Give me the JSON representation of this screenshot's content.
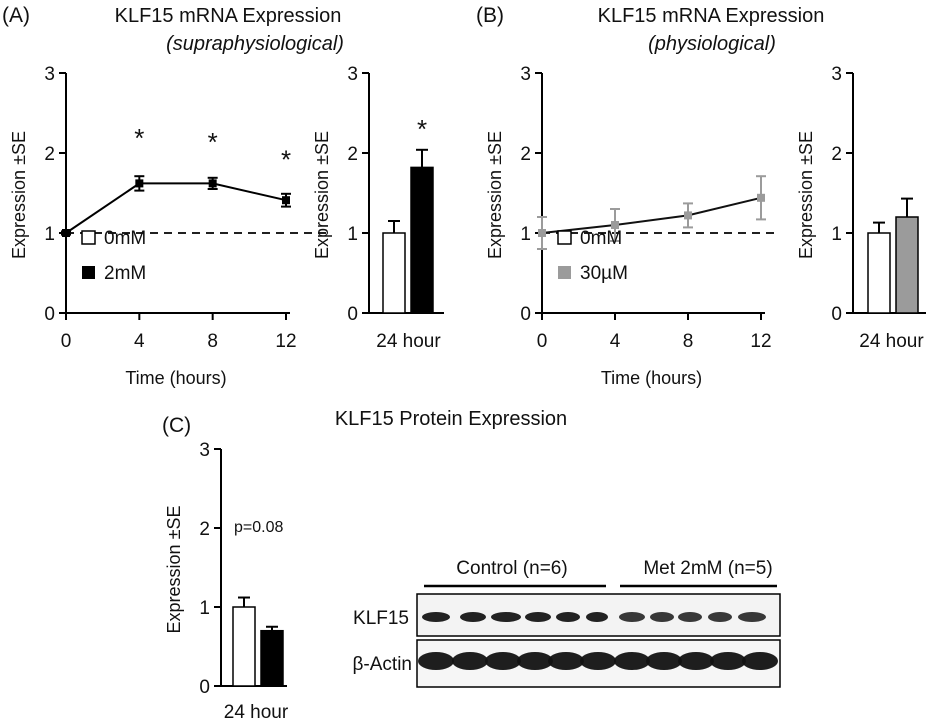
{
  "panels": {
    "A": {
      "letter": "(A)",
      "title": "KLF15 mRNA Expression",
      "subtitle": "(supraphysiological)"
    },
    "B": {
      "letter": "(B)",
      "title": "KLF15 mRNA Expression",
      "subtitle": "(physiological)"
    },
    "C": {
      "letter": "(C)",
      "title": "KLF15 Protein Expression",
      "blot": {
        "group_labels": [
          "Control (n=6)",
          "Met 2mM (n=5)"
        ],
        "row_labels": [
          "KLF15",
          "β-Actin"
        ],
        "lanes_per_group": [
          6,
          5
        ]
      }
    }
  },
  "colors": {
    "black": "#000000",
    "gray": "#9b9b9b",
    "white": "#ffffff"
  },
  "chart_data": [
    {
      "id": "A-line",
      "type": "line",
      "xlabel": "Time (hours)",
      "ylabel": "Expression ±SE",
      "x": [
        0,
        4,
        8,
        12
      ],
      "xlim": [
        0,
        12
      ],
      "ylim": [
        0,
        3
      ],
      "xticks": [
        "0",
        "4",
        "8",
        "12"
      ],
      "yticks": [
        "0",
        "1",
        "2",
        "3"
      ],
      "reference_line": 1,
      "series": [
        {
          "name": "0mM",
          "values": [
            1,
            null,
            null,
            null
          ],
          "errors": [
            0,
            null,
            null,
            null
          ],
          "marker": "open-square"
        },
        {
          "name": "2mM",
          "values": [
            1.0,
            1.62,
            1.62,
            1.41
          ],
          "errors": [
            0.02,
            0.09,
            0.07,
            0.08
          ],
          "color": "#000000",
          "marker": "filled-square"
        }
      ],
      "annotations": [
        {
          "text": "*",
          "x": 4,
          "y": 2.25
        },
        {
          "text": "*",
          "x": 8,
          "y": 2.2
        },
        {
          "text": "*",
          "x": 12,
          "y": 1.98
        }
      ],
      "legend": "bottom-left"
    },
    {
      "id": "A-bar",
      "type": "bar",
      "categories": [
        "0mM",
        "2mM"
      ],
      "category_label": "24 hour",
      "values": [
        1.0,
        1.82
      ],
      "errors": [
        0.15,
        0.22
      ],
      "colors": [
        "#ffffff",
        "#000000"
      ],
      "ylabel": "Expression ±SE",
      "ylim": [
        0,
        3
      ],
      "yticks": [
        "0",
        "1",
        "2",
        "3"
      ],
      "annotations": [
        {
          "text": "*",
          "bar": 1
        }
      ]
    },
    {
      "id": "B-line",
      "type": "line",
      "xlabel": "Time (hours)",
      "ylabel": "Expression ±SE",
      "x": [
        0,
        4,
        8,
        12
      ],
      "xlim": [
        0,
        12
      ],
      "ylim": [
        0,
        3
      ],
      "xticks": [
        "0",
        "4",
        "8",
        "12"
      ],
      "yticks": [
        "0",
        "1",
        "2",
        "3"
      ],
      "reference_line": 1,
      "series": [
        {
          "name": "0mM",
          "values": [
            1,
            null,
            null,
            null
          ],
          "errors": [
            0,
            null,
            null,
            null
          ],
          "marker": "open-square"
        },
        {
          "name": "30µM",
          "values": [
            1.0,
            1.1,
            1.22,
            1.44
          ],
          "errors": [
            0.2,
            0.2,
            0.15,
            0.27
          ],
          "color": "#9b9b9b",
          "marker": "gray-square"
        }
      ],
      "legend": "bottom-left"
    },
    {
      "id": "B-bar",
      "type": "bar",
      "categories": [
        "0mM",
        "30µM"
      ],
      "category_label": "24 hour",
      "values": [
        1.0,
        1.2
      ],
      "errors": [
        0.13,
        0.23
      ],
      "colors": [
        "#ffffff",
        "#9b9b9b"
      ],
      "ylabel": "Expression ±SE",
      "ylim": [
        0,
        3
      ],
      "yticks": [
        "0",
        "1",
        "2",
        "3"
      ]
    },
    {
      "id": "C-bar",
      "type": "bar",
      "categories": [
        "Control",
        "Met 2mM"
      ],
      "category_label": "24 hour",
      "values": [
        1.0,
        0.7
      ],
      "errors": [
        0.12,
        0.05
      ],
      "colors": [
        "#ffffff",
        "#000000"
      ],
      "ylabel": "Expression ±SE",
      "ylim": [
        0,
        3
      ],
      "yticks": [
        "0",
        "1",
        "2",
        "3"
      ],
      "annotations": [
        {
          "text": "p=0.08"
        }
      ]
    }
  ]
}
